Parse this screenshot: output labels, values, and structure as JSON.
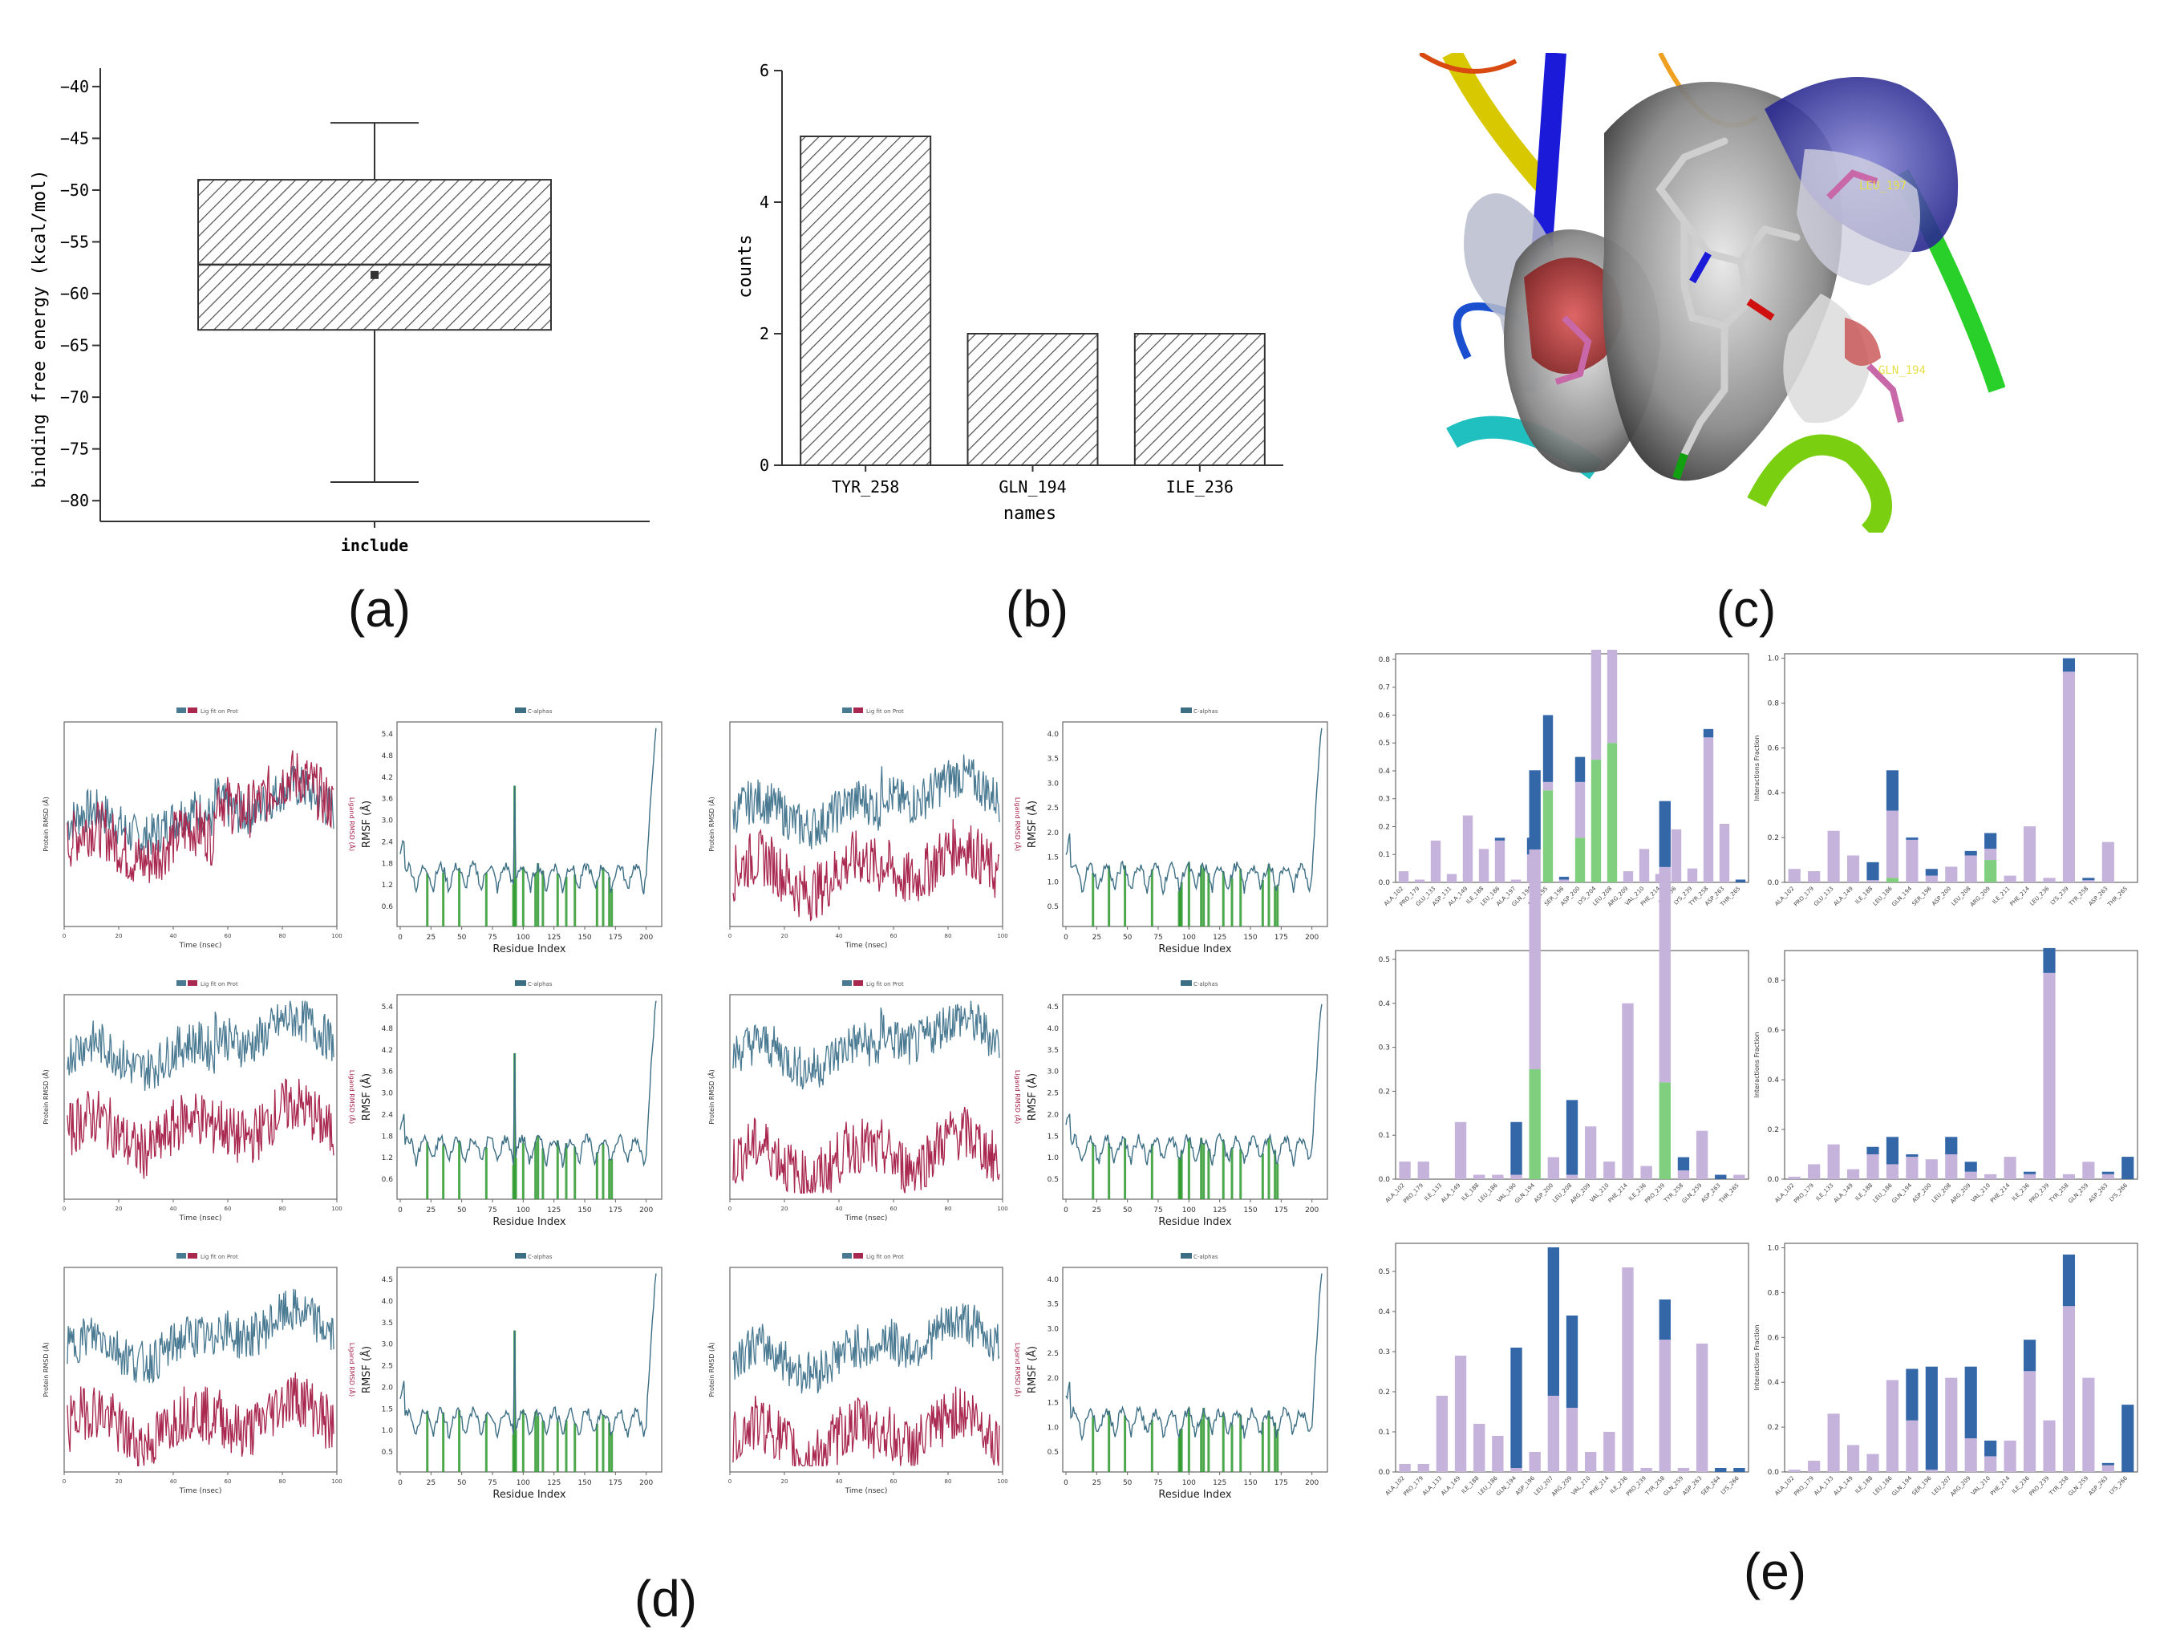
{
  "panel_labels": {
    "a": "(a)",
    "b": "(b)",
    "c": "(c)",
    "d": "(d)",
    "e": "(e)"
  },
  "chart_data": [
    {
      "id": "a",
      "type": "box",
      "ylabel": "binding free energy (kcal/mol)",
      "categories": [
        "include"
      ],
      "yticks": [
        -40,
        -45,
        -50,
        -55,
        -60,
        -65,
        -70,
        -75,
        -80
      ],
      "ylim": [
        -82,
        -39
      ],
      "box": {
        "whisker_high": -43.5,
        "q3": -49,
        "median": -57.2,
        "mean": -58.2,
        "q1": -63.5,
        "whisker_low": -78.2
      },
      "fill": "hatched"
    },
    {
      "id": "b",
      "type": "bar",
      "xlabel": "names",
      "ylabel": "counts",
      "categories": [
        "TYR_258",
        "GLN_194",
        "ILE_236"
      ],
      "values": [
        5,
        2,
        2
      ],
      "yticks": [
        0,
        2,
        4,
        6
      ],
      "ylim": [
        0,
        6
      ],
      "fill": "hatched"
    },
    {
      "id": "c",
      "type": "image",
      "residue_labels": [
        "LEU_197",
        "GLN_194"
      ]
    },
    {
      "id": "d",
      "type": "line",
      "description_none": "",
      "rmsd": {
        "legend": [
          "Cα",
          "Lig fit on Prot"
        ],
        "xlabel": "Time (nsec)",
        "ylabel_left": "Protein RMSD (Å)",
        "ylabel_right": "Ligand RMSD (Å)",
        "xticks": [
          0,
          20,
          40,
          60,
          80,
          100
        ],
        "series_colors": {
          "protein": "#4a7a92",
          "ligand": "#a8284f"
        }
      },
      "rmsf": {
        "legend": [
          "C-alphas"
        ],
        "xlabel": "Residue Index",
        "ylabel": "RMSF (Å)",
        "xticks": [
          0,
          25,
          50,
          75,
          100,
          125,
          150,
          175,
          200
        ],
        "line_color": "#3c6e84",
        "contact_color": "#2e9a2e"
      },
      "rmsf_yticks": [
        [
          "0.6",
          "1.2",
          "1.8",
          "2.4",
          "3.0",
          "3.6",
          "4.2",
          "4.8",
          "5.4"
        ],
        [
          "0.5",
          "1.0",
          "1.5",
          "2.0",
          "2.5",
          "3.0",
          "3.5",
          "4.0"
        ],
        [
          "0.6",
          "1.2",
          "1.8",
          "2.4",
          "3.0",
          "3.6",
          "4.2",
          "4.8",
          "5.4"
        ],
        [
          "0.5",
          "1.0",
          "1.5",
          "2.0",
          "2.5",
          "3.0",
          "3.5",
          "4.0",
          "4.5"
        ],
        [
          "0.5",
          "1.0",
          "1.5",
          "2.0",
          "2.5",
          "3.0",
          "3.5",
          "4.0",
          "4.5"
        ],
        [
          "0.5",
          "1.0",
          "1.5",
          "2.0",
          "2.5",
          "3.0",
          "3.5",
          "4.0"
        ]
      ]
    },
    {
      "id": "e",
      "type": "bar",
      "stacked": true,
      "ylabel_right": "Interactions Fraction",
      "colors": {
        "hbond": "#7fcf7f",
        "hydrophobic": "#c5b3dc",
        "ionic": "#e8336e",
        "water": "#3467a8"
      },
      "left_charts": [
        {
          "yticks": [
            "0.0",
            "0.1",
            "0.2",
            "0.3",
            "0.4",
            "0.5",
            "0.6",
            "0.7",
            "0.8"
          ],
          "ymax": 0.82,
          "labels": [
            "ALA_102",
            "PRO_179",
            "GLU_133",
            "ASP_131",
            "ALA_149",
            "ILE_188",
            "LEU_186",
            "ALA_197",
            "GLN_194",
            "PHE_195",
            "SER_196",
            "ASP_200",
            "LYS_204",
            "LEU_208",
            "ARG_209",
            "VAL_210",
            "PHE_214",
            "ILE_236",
            "LYS_239",
            "TYR_258",
            "ASP_263",
            "THR_265"
          ],
          "hyd": [
            0.04,
            0.01,
            0.15,
            0.03,
            0.24,
            0.12,
            0.15,
            0.01,
            0.1,
            0.03,
            0.01,
            0.2,
            0.48,
            0.55,
            0.04,
            0.12,
            0.03,
            0.19,
            0.05,
            0.52,
            0.21,
            0.0
          ],
          "hb": [
            0,
            0,
            0,
            0,
            0,
            0,
            0,
            0,
            0,
            0.33,
            0,
            0.16,
            0.44,
            0.5,
            0,
            0,
            0,
            0,
            0,
            0,
            0,
            0
          ],
          "wat": [
            0,
            0,
            0,
            0,
            0,
            0,
            0.01,
            0,
            0.06,
            0.24,
            0.01,
            0.09,
            0.02,
            0.31,
            0,
            0,
            0,
            0,
            0,
            0.03,
            0,
            0.01
          ]
        },
        {
          "yticks": [
            "0.0",
            "0.1",
            "0.2",
            "0.3",
            "0.4",
            "0.5"
          ],
          "ymax": 0.52,
          "labels": [
            "ALA_102",
            "PRO_179",
            "ILE_133",
            "ALA_149",
            "ILE_188",
            "LEU_186",
            "VAL_190",
            "GLN_194",
            "ASP_200",
            "LEU_208",
            "ARG_209",
            "VAL_210",
            "PHE_214",
            "ILE_236",
            "PRO_239",
            "TYR_258",
            "GLN_259",
            "ASP_263",
            "THR_265"
          ],
          "hyd": [
            0.04,
            0.04,
            0.0,
            0.13,
            0.01,
            0.01,
            0.01,
            0.5,
            0.05,
            0.01,
            0.12,
            0.04,
            0.4,
            0.03,
            0.49,
            0.02,
            0.11,
            0.0,
            0.01
          ],
          "hb": [
            0,
            0,
            0,
            0,
            0,
            0,
            0,
            0.25,
            0,
            0,
            0,
            0,
            0,
            0,
            0.22,
            0,
            0,
            0,
            0
          ],
          "wat": [
            0,
            0,
            0,
            0,
            0,
            0,
            0.12,
            0.18,
            0,
            0.17,
            0,
            0,
            0,
            0,
            0.15,
            0.03,
            0,
            0.01,
            0
          ]
        },
        {
          "yticks": [
            "0.0",
            "0.1",
            "0.2",
            "0.3",
            "0.4",
            "0.5"
          ],
          "ymax": 0.57,
          "labels": [
            "ALA_102",
            "PRO_179",
            "ALA_133",
            "ALA_149",
            "ILE_188",
            "LEU_186",
            "GLN_194",
            "ASP_196",
            "LEU_207",
            "ARG_209",
            "VAL_210",
            "PHE_214",
            "ILE_236",
            "PRO_239",
            "TYR_258",
            "GLN_259",
            "ASP_263",
            "SER_264",
            "LYS_266"
          ],
          "hyd": [
            0.02,
            0.02,
            0.19,
            0.29,
            0.12,
            0.09,
            0.01,
            0.05,
            0.19,
            0.16,
            0.05,
            0.1,
            0.51,
            0.01,
            0.33,
            0.01,
            0.32,
            0.0,
            0.0
          ],
          "hb": [
            0,
            0,
            0,
            0,
            0,
            0,
            0,
            0,
            0,
            0,
            0,
            0,
            0,
            0,
            0,
            0,
            0,
            0,
            0
          ],
          "wat": [
            0,
            0,
            0,
            0,
            0,
            0,
            0.3,
            0,
            0.37,
            0.23,
            0.0,
            0,
            0,
            0,
            0.1,
            0.0,
            0,
            0.01,
            0.01
          ]
        }
      ],
      "right_charts": [
        {
          "yticks": [
            "0.0",
            "0.2",
            "0.4",
            "0.6",
            "0.8",
            "1.0"
          ],
          "ymax": 1.02,
          "labels": [
            "ALA_102",
            "PRO_179",
            "GLU_133",
            "ALA_149",
            "ILE_188",
            "LEU_186",
            "GLN_194",
            "SER_196",
            "ASP_200",
            "LEU_208",
            "ARG_209",
            "ILE_211",
            "PHE_214",
            "LEU_236",
            "LYS_239",
            "TYR_258",
            "ASP_263",
            "THR_265"
          ],
          "hyd": [
            0.06,
            0.05,
            0.23,
            0.12,
            0.01,
            0.3,
            0.19,
            0.03,
            0.07,
            0.12,
            0.05,
            0.03,
            0.25,
            0.02,
            0.94,
            0.01,
            0.18,
            0.0
          ],
          "hb": [
            0,
            0,
            0,
            0,
            0,
            0.02,
            0,
            0,
            0,
            0,
            0.1,
            0,
            0,
            0,
            0,
            0,
            0,
            0
          ],
          "wat": [
            0,
            0,
            0,
            0,
            0.08,
            0.18,
            0.01,
            0.03,
            0.0,
            0.02,
            0.07,
            0,
            0,
            0,
            0.06,
            0.01,
            0,
            0
          ]
        },
        {
          "yticks": [
            "0.0",
            "0.2",
            "0.4",
            "0.6",
            "0.8"
          ],
          "ymax": 0.92,
          "labels": [
            "ALA_102",
            "PRO_179",
            "ILE_133",
            "ALA_149",
            "ILE_188",
            "LEU_186",
            "GLN_194",
            "ASP_200",
            "LEU_208",
            "ARG_209",
            "VAL_210",
            "PHE_214",
            "ILE_236",
            "PRO_239",
            "TYR_258",
            "GLN_259",
            "ASP_263",
            "LYS_266"
          ],
          "hyd": [
            0.01,
            0.06,
            0.14,
            0.04,
            0.1,
            0.06,
            0.09,
            0.08,
            0.1,
            0.03,
            0.02,
            0.09,
            0.02,
            0.83,
            0.02,
            0.07,
            0.02,
            0.0
          ],
          "hb": [
            0,
            0,
            0,
            0,
            0,
            0,
            0,
            0,
            0,
            0,
            0,
            0,
            0,
            0,
            0,
            0,
            0,
            0
          ],
          "wat": [
            0,
            0,
            0,
            0,
            0.03,
            0.11,
            0.01,
            0.0,
            0.07,
            0.04,
            0,
            0,
            0.01,
            0.1,
            0.0,
            0,
            0.01,
            0.09
          ]
        },
        {
          "yticks": [
            "0.0",
            "0.2",
            "0.4",
            "0.6",
            "0.8",
            "1.0"
          ],
          "ymax": 1.02,
          "labels": [
            "ALA_102",
            "PRO_179",
            "ALA_133",
            "ALA_149",
            "ILE_188",
            "LEU_186",
            "GLN_194",
            "SER_196",
            "LEU_207",
            "ARG_209",
            "VAL_210",
            "PHE_214",
            "ILE_236",
            "PRO_239",
            "TYR_258",
            "GLN_259",
            "ASP_263",
            "LYS_266"
          ],
          "hyd": [
            0.01,
            0.05,
            0.26,
            0.12,
            0.08,
            0.41,
            0.23,
            0.01,
            0.42,
            0.15,
            0.07,
            0.14,
            0.45,
            0.23,
            0.74,
            0.42,
            0.03,
            0.0
          ],
          "hb": [
            0,
            0,
            0,
            0,
            0,
            0,
            0,
            0,
            0,
            0,
            0,
            0,
            0,
            0,
            0,
            0,
            0,
            0
          ],
          "wat": [
            0,
            0,
            0,
            0,
            0,
            0,
            0.23,
            0.46,
            0.0,
            0.32,
            0.07,
            0,
            0.14,
            0,
            0.23,
            0,
            0.01,
            0.3
          ]
        }
      ]
    }
  ],
  "mol_labels": {
    "leu": "LEU_197",
    "gln": "GLN_194"
  }
}
